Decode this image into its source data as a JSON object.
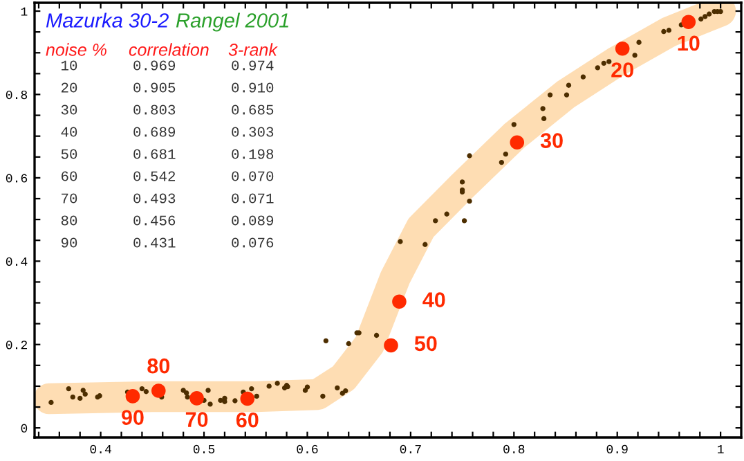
{
  "chart_data": {
    "type": "scatter",
    "title": "Mazurka 30-2",
    "subtitle": "Rangel 2001",
    "annotations": [
      {
        "text": "10",
        "x": 0.969,
        "y": 0.974
      },
      {
        "text": "20",
        "x": 0.905,
        "y": 0.91
      },
      {
        "text": "30",
        "x": 0.803,
        "y": 0.685
      },
      {
        "text": "40",
        "x": 0.689,
        "y": 0.303
      },
      {
        "text": "50",
        "x": 0.681,
        "y": 0.198
      },
      {
        "text": "60",
        "x": 0.542,
        "y": 0.07
      },
      {
        "text": "70",
        "x": 0.493,
        "y": 0.071
      },
      {
        "text": "80",
        "x": 0.456,
        "y": 0.089
      },
      {
        "text": "90",
        "x": 0.431,
        "y": 0.076
      },
      "noise %",
      "correlation",
      "3-rank",
      "10",
      "0.969",
      "0.974",
      "20",
      "0.905",
      "0.910",
      "30",
      "0.803",
      "0.685",
      "40",
      "0.689",
      "0.303",
      "50",
      "0.681",
      "0.198",
      "60",
      "0.542",
      "0.070",
      "70",
      "0.493",
      "0.071",
      "80",
      "0.456",
      "0.089",
      "90",
      "0.431",
      "0.076"
    ],
    "xlim": [
      0.336,
      1.02
    ],
    "ylim": [
      -0.023,
      1.02
    ],
    "grid": false,
    "legend": false,
    "xticks": [
      {
        "value": 0.34,
        "label": null
      },
      {
        "value": 0.36,
        "label": null
      },
      {
        "value": 0.38,
        "label": null
      },
      0.4,
      {
        "value": 0.42,
        "label": null
      },
      {
        "value": 0.44,
        "label": null
      },
      {
        "value": 0.46,
        "label": null
      },
      {
        "value": 0.48,
        "label": null
      },
      0.5,
      {
        "value": 0.52,
        "label": null
      },
      {
        "value": 0.54,
        "label": null
      },
      {
        "value": 0.56,
        "label": null
      },
      {
        "value": 0.58,
        "label": null
      },
      0.6,
      {
        "value": 0.62,
        "label": null
      },
      {
        "value": 0.64,
        "label": null
      },
      {
        "value": 0.66,
        "label": null
      },
      {
        "value": 0.68,
        "label": null
      },
      0.7,
      {
        "value": 0.72,
        "label": null
      },
      {
        "value": 0.74,
        "label": null
      },
      {
        "value": 0.76,
        "label": null
      },
      {
        "value": 0.78,
        "label": null
      },
      0.8,
      {
        "value": 0.82,
        "label": null
      },
      {
        "value": 0.84,
        "label": null
      },
      {
        "value": 0.86,
        "label": null
      },
      {
        "value": 0.88,
        "label": null
      },
      0.9,
      {
        "value": 0.92,
        "label": null
      },
      {
        "value": 0.94,
        "label": null
      },
      {
        "value": 0.96,
        "label": null
      },
      {
        "value": 0.98,
        "label": null
      },
      1
    ],
    "yticks": [
      0,
      {
        "value": 0.05,
        "label": null
      },
      {
        "value": 0.1,
        "label": null
      },
      {
        "value": 0.15,
        "label": null
      },
      0.2,
      {
        "value": 0.25,
        "label": null
      },
      {
        "value": 0.3,
        "label": null
      },
      {
        "value": 0.35,
        "label": null
      },
      0.4,
      {
        "value": 0.45,
        "label": null
      },
      {
        "value": 0.5,
        "label": null
      },
      {
        "value": 0.55,
        "label": null
      },
      0.6,
      {
        "value": 0.65,
        "label": null
      },
      {
        "value": 0.7,
        "label": null
      },
      {
        "value": 0.75,
        "label": null
      },
      0.8,
      {
        "value": 0.85,
        "label": null
      },
      {
        "value": 0.9,
        "label": null
      },
      {
        "value": 0.95,
        "label": null
      },
      1
    ],
    "series": [
      {
        "type": "line",
        "color": "#fdd29a",
        "marker": "none",
        "x": [
          0.35,
          0.45,
          0.55,
          0.61,
          0.635,
          0.66,
          0.685,
          0.71,
          0.75,
          0.8,
          0.85,
          0.9,
          0.95,
          1.0
        ],
        "values": [
          0.07,
          0.075,
          0.075,
          0.08,
          0.12,
          0.2,
          0.36,
          0.48,
          0.58,
          0.7,
          0.8,
          0.88,
          0.95,
          1.0
        ]
      },
      {
        "type": "scatter",
        "color": "#4d2e00",
        "marker": "circle",
        "x": [
          0.352,
          0.369,
          0.373,
          0.38,
          0.383,
          0.385,
          0.397,
          0.399,
          0.426,
          0.44,
          0.444,
          0.459,
          0.48,
          0.484,
          0.483,
          0.5,
          0.504,
          0.506,
          0.516,
          0.52,
          0.52,
          0.53,
          0.538,
          0.546,
          0.551,
          0.563,
          0.571,
          0.578,
          0.58,
          0.581,
          0.598,
          0.6,
          0.615,
          0.618,
          0.629,
          0.634,
          0.637,
          0.64,
          0.648,
          0.65,
          0.667,
          0.69,
          0.714,
          0.724,
          0.735,
          0.752,
          0.75,
          0.75,
          0.75,
          0.757,
          0.757,
          0.788,
          0.792,
          0.8,
          0.828,
          0.829,
          0.835,
          0.851,
          0.853,
          0.867,
          0.881,
          0.887,
          0.892,
          0.917,
          0.921,
          0.945,
          0.95,
          0.962,
          0.981,
          0.985,
          0.989,
          0.994,
          0.997,
          1.0
        ],
        "values": [
          0.061,
          0.094,
          0.074,
          0.071,
          0.09,
          0.081,
          0.074,
          0.077,
          0.086,
          0.094,
          0.087,
          0.074,
          0.09,
          0.074,
          0.084,
          0.066,
          0.09,
          0.057,
          0.066,
          0.063,
          0.071,
          0.065,
          0.086,
          0.094,
          0.076,
          0.1,
          0.107,
          0.096,
          0.102,
          0.099,
          0.09,
          0.098,
          0.076,
          0.209,
          0.096,
          0.083,
          0.089,
          0.202,
          0.228,
          0.228,
          0.222,
          0.447,
          0.44,
          0.497,
          0.513,
          0.497,
          0.59,
          0.571,
          0.566,
          0.544,
          0.653,
          0.637,
          0.657,
          0.728,
          0.766,
          0.742,
          0.799,
          0.799,
          0.822,
          0.842,
          0.864,
          0.875,
          0.879,
          0.894,
          0.925,
          0.951,
          0.954,
          0.967,
          0.981,
          0.987,
          0.993,
          0.999,
          0.999,
          0.999
        ]
      },
      {
        "type": "scatter",
        "color": "#ff2a00",
        "marker": "circle",
        "x": [
          0.969,
          0.905,
          0.803,
          0.689,
          0.681,
          0.542,
          0.493,
          0.456,
          0.431
        ],
        "values": [
          0.974,
          0.91,
          0.685,
          0.303,
          0.198,
          0.07,
          0.071,
          0.089,
          0.076
        ]
      }
    ]
  }
}
